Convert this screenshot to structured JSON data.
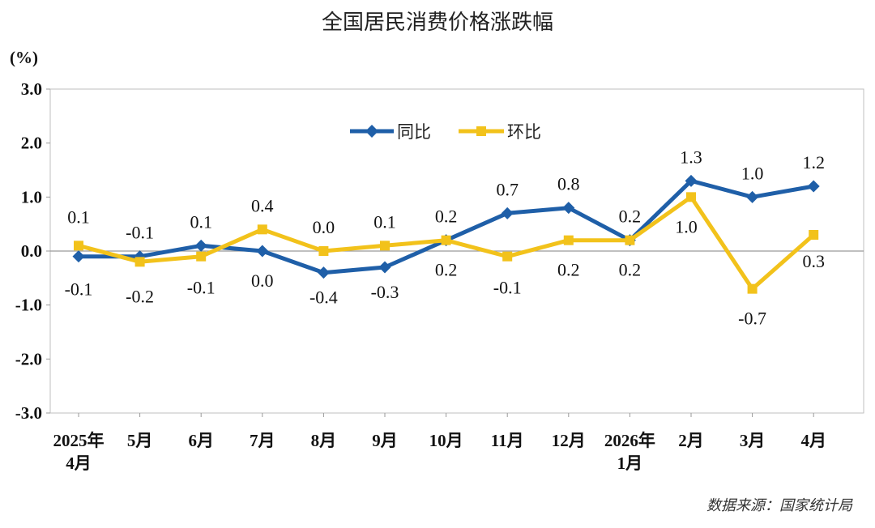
{
  "chart_data": {
    "type": "line",
    "title": "全国居民消费价格涨跌幅",
    "ylabel": "(%)",
    "ylim": [
      -3.0,
      3.0
    ],
    "yticks": [
      "3.0",
      "2.0",
      "1.0",
      "0.0",
      "-1.0",
      "-2.0",
      "-3.0"
    ],
    "ytick_values": [
      3,
      2,
      1,
      0,
      -1,
      -2,
      -3
    ],
    "categories": [
      [
        "2025年",
        "4月"
      ],
      [
        "5月"
      ],
      [
        "6月"
      ],
      [
        "7月"
      ],
      [
        "8月"
      ],
      [
        "9月"
      ],
      [
        "10月"
      ],
      [
        "11月"
      ],
      [
        "12月"
      ],
      [
        "2026年",
        "1月"
      ],
      [
        "2月"
      ],
      [
        "3月"
      ],
      [
        "4月"
      ]
    ],
    "series": [
      {
        "name": "同比",
        "color": "#1f5fa8",
        "marker": "diamond",
        "values": [
          -0.1,
          -0.1,
          0.1,
          0.0,
          -0.4,
          -0.3,
          0.2,
          0.7,
          0.8,
          0.2,
          1.3,
          1.0,
          1.2
        ],
        "labels": [
          "-0.1",
          "-0.1",
          "0.1",
          "0.0",
          "-0.4",
          "-0.3",
          "0.2",
          "0.7",
          "0.8",
          "0.2",
          "1.3",
          "1.0",
          "1.2"
        ]
      },
      {
        "name": "环比",
        "color": "#f2c21b",
        "marker": "square",
        "values": [
          0.1,
          -0.2,
          -0.1,
          0.4,
          0.0,
          0.1,
          0.2,
          -0.1,
          0.2,
          0.2,
          1.0,
          -0.7,
          0.3
        ],
        "labels": [
          "0.1",
          "-0.2",
          "-0.1",
          "0.4",
          "0.0",
          "0.1",
          "0.2",
          "-0.1",
          "0.2",
          "0.2",
          "1.0",
          "-0.7",
          "0.3"
        ]
      }
    ],
    "legend": "top-center",
    "grid": false,
    "source": "数据来源：国家统计局"
  }
}
